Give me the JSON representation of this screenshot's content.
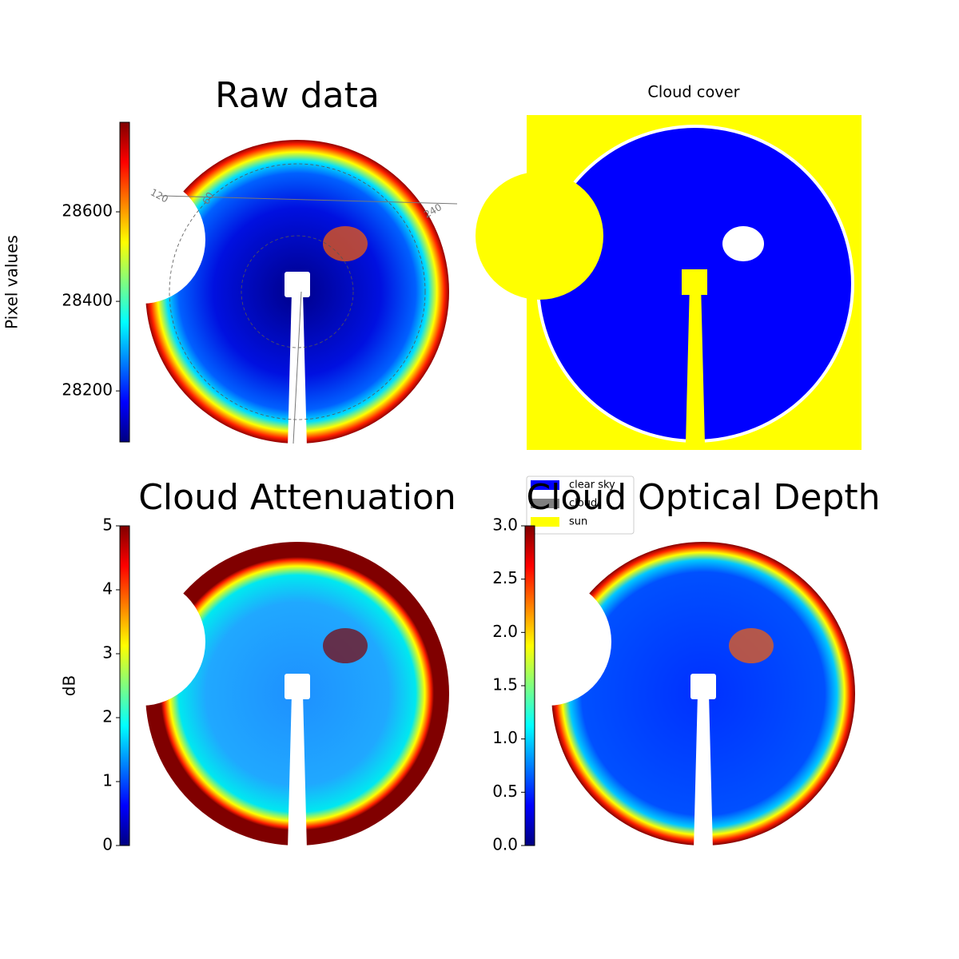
{
  "chart_data": [
    {
      "type": "image",
      "title": "Raw data",
      "ylabel": "Pixel values",
      "colormap": "jet",
      "ylim": [
        28086,
        28800
      ],
      "yticks": [
        28200,
        28400,
        28600
      ],
      "annotations": [
        "120",
        "60",
        "240"
      ]
    },
    {
      "type": "mask",
      "title": "Cloud cover",
      "series": [
        {
          "name": "clear sky",
          "color": "#0000ff"
        },
        {
          "name": "cloud",
          "color": "#808080"
        },
        {
          "name": "sun",
          "color": "#ffff00"
        }
      ]
    },
    {
      "type": "image",
      "title": "Cloud Attenuation",
      "ylabel": "dB",
      "colormap": "jet",
      "ylim": [
        0,
        5
      ],
      "yticks": [
        0,
        1,
        2,
        3,
        4,
        5
      ]
    },
    {
      "type": "image",
      "title": "Cloud Optical Depth",
      "colormap": "jet",
      "ylim": [
        0,
        3
      ],
      "yticks": [
        {
          "value": 0,
          "label": "0.0"
        },
        {
          "value": 0.5,
          "label": "0.5"
        },
        {
          "value": 1,
          "label": "1.0"
        },
        {
          "value": 1.5,
          "label": "1.5"
        },
        {
          "value": 2,
          "label": "2.0"
        },
        {
          "value": 2.5,
          "label": "2.5"
        },
        {
          "value": 3,
          "label": "3.0"
        }
      ]
    }
  ]
}
